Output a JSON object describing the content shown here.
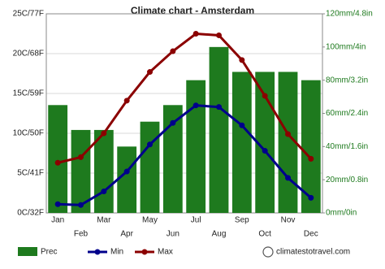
{
  "chart_data": {
    "type": "bar",
    "title": "Climate chart - Amsterdam",
    "watermark": "climatestotravel.com",
    "categories": [
      "Jan",
      "Feb",
      "Mar",
      "Apr",
      "May",
      "Jun",
      "Jul",
      "Aug",
      "Sep",
      "Oct",
      "Nov",
      "Dec"
    ],
    "series": [
      {
        "name": "Prec",
        "type": "bar",
        "axis": "y2",
        "color": "#1e7a1e",
        "values": [
          65,
          50,
          50,
          40,
          55,
          65,
          80,
          100,
          85,
          85,
          85,
          80
        ]
      },
      {
        "name": "Min",
        "type": "line",
        "color": "#00008b",
        "values": [
          1.1,
          1.0,
          2.7,
          5.2,
          8.6,
          11.3,
          13.5,
          13.3,
          11.0,
          7.8,
          4.4,
          1.9
        ]
      },
      {
        "name": "Max",
        "type": "line",
        "color": "#8b0000",
        "values": [
          6.3,
          7.0,
          10.0,
          14.1,
          17.7,
          20.3,
          22.5,
          22.3,
          19.2,
          14.7,
          9.9,
          6.8
        ]
      }
    ],
    "ylim": [
      0,
      25
    ],
    "yticks": [
      {
        "value": 0,
        "label": "0C/32F"
      },
      {
        "value": 5,
        "label": "5C/41F"
      },
      {
        "value": 10,
        "label": "10C/50F"
      },
      {
        "value": 15,
        "label": "15C/59F"
      },
      {
        "value": 20,
        "label": "20C/68F"
      },
      {
        "value": 25,
        "label": "25C/77F"
      }
    ],
    "y2lim": [
      0,
      120
    ],
    "y2ticks": [
      {
        "value": 0,
        "label": "0mm/0in"
      },
      {
        "value": 20,
        "label": "20mm/0.8in"
      },
      {
        "value": 40,
        "label": "40mm/1.6in"
      },
      {
        "value": 60,
        "label": "60mm/2.4in"
      },
      {
        "value": 80,
        "label": "80mm/3.2in"
      },
      {
        "value": 100,
        "label": "100mm/4in"
      },
      {
        "value": 120,
        "label": "120mm/4.8in"
      }
    ],
    "grid": true
  }
}
